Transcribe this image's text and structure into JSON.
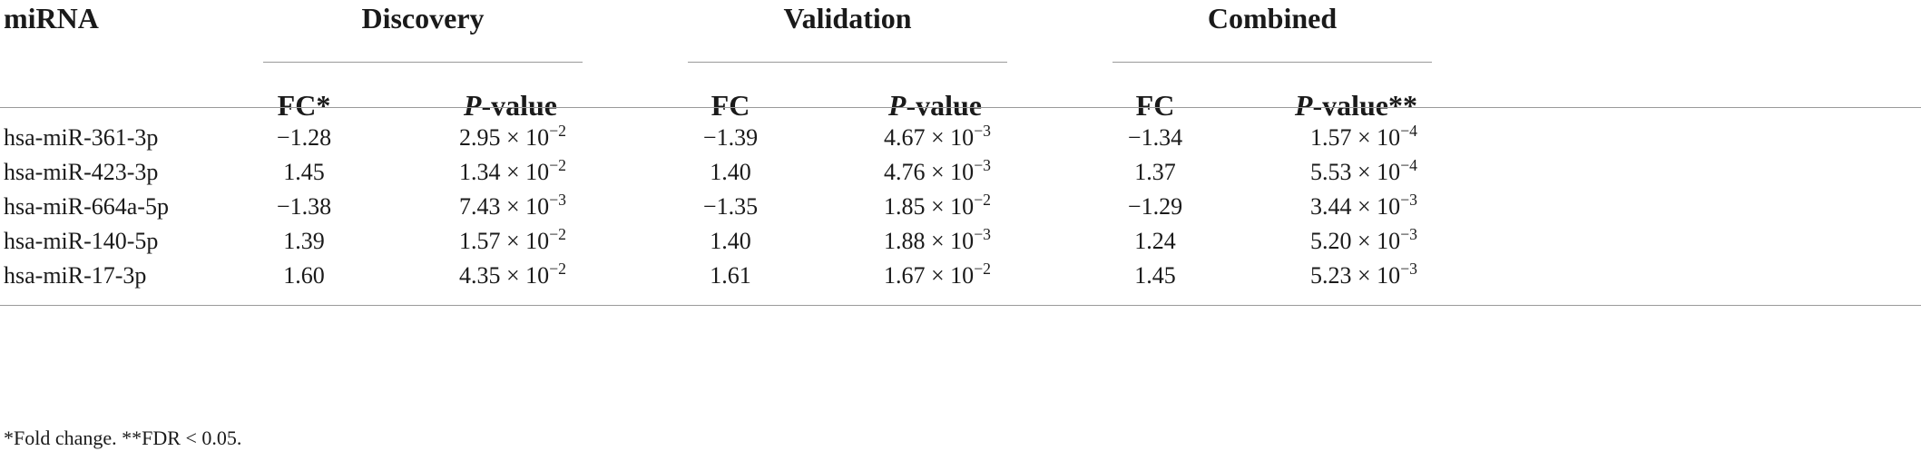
{
  "header": {
    "mirna_label": "miRNA",
    "groups": [
      "Discovery",
      "Validation",
      "Combined"
    ],
    "fc_star": "FC*",
    "fc": "FC",
    "p_letter": "P",
    "p_suffix": "-value",
    "p_suffix_star": "-value**"
  },
  "times_base": "× 10",
  "rows": [
    {
      "mirna": "hsa-miR-361-3p",
      "d_fc": "−1.28",
      "d_pm": "2.95",
      "d_pe": "−2",
      "v_fc": "−1.39",
      "v_pm": "4.67",
      "v_pe": "−3",
      "c_fc": "−1.34",
      "c_pm": "1.57",
      "c_pe": "−4"
    },
    {
      "mirna": "hsa-miR-423-3p",
      "d_fc": "1.45",
      "d_pm": "1.34",
      "d_pe": "−2",
      "v_fc": "1.40",
      "v_pm": "4.76",
      "v_pe": "−3",
      "c_fc": "1.37",
      "c_pm": "5.53",
      "c_pe": "−4"
    },
    {
      "mirna": "hsa-miR-664a-5p",
      "d_fc": "−1.38",
      "d_pm": "7.43",
      "d_pe": "−3",
      "v_fc": "−1.35",
      "v_pm": "1.85",
      "v_pe": "−2",
      "c_fc": "−1.29",
      "c_pm": "3.44",
      "c_pe": "−3"
    },
    {
      "mirna": "hsa-miR-140-5p",
      "d_fc": "1.39",
      "d_pm": "1.57",
      "d_pe": "−2",
      "v_fc": "1.40",
      "v_pm": "1.88",
      "v_pe": "−3",
      "c_fc": "1.24",
      "c_pm": "5.20",
      "c_pe": "−3"
    },
    {
      "mirna": "hsa-miR-17-3p",
      "d_fc": "1.60",
      "d_pm": "4.35",
      "d_pe": "−2",
      "v_fc": "1.61",
      "v_pm": "1.67",
      "v_pe": "−2",
      "c_fc": "1.45",
      "c_pm": "5.23",
      "c_pe": "−3"
    }
  ],
  "footnote": "*Fold change. **FDR < 0.05."
}
